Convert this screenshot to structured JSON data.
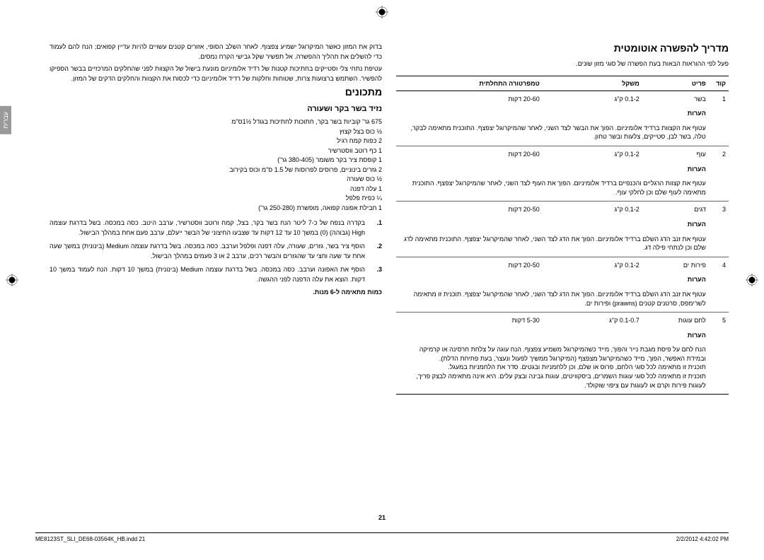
{
  "tab": "עברית",
  "right": {
    "title": "מדריך להפשרה אוטומטית",
    "intro": "פעל לפי ההוראות הבאות בעת הפשרה של סוגי מזון שונים.",
    "headers": {
      "code": "קוד",
      "item": "פריט",
      "weight": "משקל",
      "temp": "טמפרטורה התחלתית"
    },
    "rows": [
      {
        "code": "1",
        "item": "בשר",
        "weight": "0.1-2 ק\"ג",
        "temp": "20-60 דקות",
        "notes_label": "הערות",
        "notes": "עטוף את הקצוות ברדיד אלומיניום. הפוך את הבשר לצד השני, לאחר שהמיקרוגל יצפצף. התוכנית מתאימה לבקר, טלה, בשר לבן, סטייקים, צלעות ובשר טחון."
      },
      {
        "code": "2",
        "item": "עוף",
        "weight": "0.1-2 ק\"ג",
        "temp": "20-60 דקות",
        "notes_label": "הערות",
        "notes": "עטוף את קצוות הרגליים והכנפיים ברדיד אלומיניום. הפוך את העוף לצד השני, לאחר שהמיקרוגל יצפצף. התוכנית מתאימה לעוף שלם וכן לחלקי עוף."
      },
      {
        "code": "3",
        "item": "דגים",
        "weight": "0.1-2 ק\"ג",
        "temp": "20-50 דקות",
        "notes_label": "הערות",
        "notes": "עטוף את זנב הדג השלם ברדיד אלומיניום. הפוך את הדג לצד השני, לאחר שהמיקרוגל יצפצף. התוכנית מתאימה לדג שלם וכן לנתחי פילה דג."
      },
      {
        "code": "4",
        "item": "פירות ים",
        "weight": "0.1-2 ק\"ג",
        "temp": "20-50 דקות",
        "notes_label": "הערות",
        "notes": "עטוף את זנב הדג השלם ברדיד אלומיניום. הפוך את הדג לצד השני, לאחר שהמיקרוגל יצפצף. תוכנית זו מתאימה לשרימפס, סרטנים קטנים (prawns) ופירות ים."
      },
      {
        "code": "5",
        "item": "לחם עוגות",
        "weight": "0.1-0.7 ק\"ג",
        "temp": "5-30 דקות",
        "notes_label": "הערות",
        "notes": "הנח לחם על פיסת מגבת נייר והפוך, מייד כשהמיקרוגל משמיע צפצוף. הנח עוגה על צלחת חרסינה או קרמיקה ובמידת האפשר, הפוך, מייד כשהמיקרוגל מצפצף (המיקרוגל ממשיך לפעול ונעצר, בעת פתיחת הדלת).\nתוכנית זו מתאימה לכל סוגי הלחם, פרוס או שלם, וכן ללחמניות ובגטים. סדר את הלחמניות במעגל.\nתוכנית זו מתאימה לכל סוגי עוגות השמרים, ביסקוויטים, עוגות גבינה ובצק עלים. היא אינה מתאימה לבצק פריך, לעוגות פירות וקרם או לעוגות עם ציפוי שוקולד."
      }
    ]
  },
  "left": {
    "paragraphs": [
      "בדוק את המזון כאשר המיקרוגל ישמיע צפצוף. לאחר השלב הסופי, אזורים קטנים עשויים להיות עדיין קפואים; הנח להם לעמוד כדי להשלים את תהליך ההפשרה. אל תפשיר שקל גבישי הקרח נמסים.",
      "עטיפת נתחי צלי וסטייקים בחתיכות קטנות של רדיד אלומיניום מונעת בישול של הקצוות לפני שהחלקים המרכזיים בבשר הספיקו להפשיר. השתמש ברצועות צרות, שטוחות וחלקות של רדיד אלומיניום כדי לכסות את הקצוות והחלקים הדקים של המזון."
    ],
    "recipes_title": "מתכונים",
    "recipe_name": "נזיד בשר בקר ושעורה",
    "ingredients": [
      "675 גר' קוביות בשר בקר, חתוכות לחתיכות בגודל ½1ס\"מ",
      "½ כוס בצל קצוץ",
      "2 כפות קמח רגיל",
      "1 כף רוטב ווסטרשיר",
      "1 קופסת ציר בקר משומר (380-405 גר')",
      "2 גזרים בינוניים, פרוסים לפרוסות של 1.5 ס\"מ וכוס בקירוב",
      "½ כוס שעורה",
      "1 עלה דפנה",
      "¼ כפית פלפל",
      "1 חבילת אפונה קפואה, מופשרת (250-280 גר')"
    ],
    "steps": [
      {
        "num": "1.",
        "text": "בקדרה בנפח של כ-7 ליטר הנח בשר בקר, בצל, קמח ורוטב ווסטרשיר, ערבב היטב. כסה במכסה. בשל בדרגת עוצמה High (גבוהה) (0) במשך 10 עד 12 דקות עד שצבעו החיצוני של הבשר ייעלם, ערבב פעם אחת במהלך הבישול."
      },
      {
        "num": "2.",
        "text": "הוסף ציר בשר, גזרים, שעורה, עלה דפנה ופלפל וערבב. כסה במכסה. בשל בדרגת עוצמה Medium (בינונית) במשך שעה אחת עד שעה וחצי עד שהגזרים והבשר רכים, ערבב 2 או 3 פעמים במהלך הבישול."
      },
      {
        "num": "3.",
        "text": "הוסף את האפונה וערבב. כסה במכסה. בשל בדרגת עוצמה Medium (בינונית) במשך 10 דקות. הנח לעמוד במשך 10 דקות. הוצא את עלה הדפנה לפני ההגשה."
      }
    ],
    "serving": "כמות מתאימה ל-6 מנות."
  },
  "page_number": "21",
  "footer": {
    "left": "ME8123ST_SLI_DE68-03564K_HB.indd   21",
    "right": "2/2/2012   4:42:02 PM"
  }
}
